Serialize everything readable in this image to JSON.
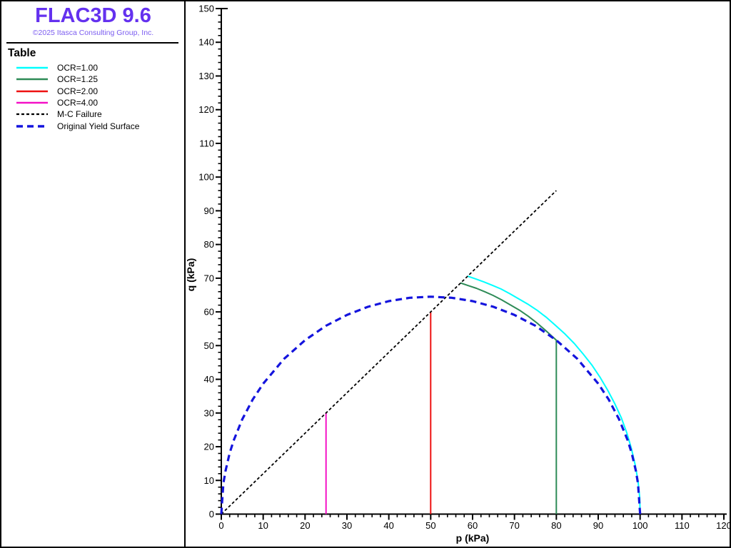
{
  "panel": {
    "title": "FLAC3D 9.6",
    "copyright": "©2025 Itasca Consulting Group, Inc.",
    "section_title": "Table",
    "brand_color": "#6431ef",
    "copyright_color": "#7b5cf0"
  },
  "chart_data": {
    "type": "line",
    "title": "",
    "xlabel": "p (kPa)",
    "ylabel": "q (kPa)",
    "xlim": [
      0,
      120
    ],
    "ylim": [
      0,
      150
    ],
    "x_tick_major": 10,
    "x_tick_minor": 2,
    "y_tick_major": 10,
    "y_tick_minor": 2,
    "x_tick_labels": [
      "0",
      "10",
      "20",
      "30",
      "40",
      "50",
      "60",
      "70",
      "80",
      "90",
      "100",
      "110",
      "120"
    ],
    "y_tick_labels": [
      "0",
      "10",
      "20",
      "30",
      "40",
      "50",
      "60",
      "70",
      "80",
      "90",
      "100",
      "110",
      "120",
      "130",
      "140",
      "150"
    ],
    "grid": false,
    "legend_position": "left panel",
    "axis_color": "#000000",
    "series": [
      {
        "name": "OCR=1.00",
        "color": "#00ffff",
        "style": "solid",
        "width": 2,
        "dash": [],
        "points": [
          [
            100,
            0
          ],
          [
            99.9,
            5.0
          ],
          [
            99.5,
            9.9
          ],
          [
            98.8,
            14.8
          ],
          [
            97.9,
            19.6
          ],
          [
            96.8,
            24.2
          ],
          [
            95.5,
            28.6
          ],
          [
            93.9,
            32.9
          ],
          [
            92.2,
            36.9
          ],
          [
            90.4,
            40.7
          ],
          [
            88.5,
            44.2
          ],
          [
            86.4,
            47.5
          ],
          [
            84.3,
            50.6
          ],
          [
            82.1,
            53.4
          ],
          [
            79.9,
            55.9
          ],
          [
            77.7,
            58.3
          ],
          [
            75.5,
            60.4
          ],
          [
            73.2,
            62.3
          ],
          [
            71.0,
            63.9
          ],
          [
            68.9,
            65.4
          ],
          [
            66.8,
            66.8
          ],
          [
            64.7,
            67.9
          ],
          [
            62.7,
            68.9
          ],
          [
            60.7,
            69.8
          ],
          [
            58.8,
            70.6
          ]
        ]
      },
      {
        "name": "OCR=1.25",
        "color": "#2e8b57",
        "style": "solid",
        "width": 2,
        "dash": [],
        "points": [
          [
            80,
            0
          ],
          [
            80,
            51.6
          ],
          [
            77.6,
            54.3
          ],
          [
            75.5,
            56.6
          ],
          [
            73.3,
            58.7
          ],
          [
            71.2,
            60.5
          ],
          [
            69.0,
            62.1
          ],
          [
            66.9,
            63.6
          ],
          [
            64.9,
            64.9
          ],
          [
            62.9,
            66.0
          ],
          [
            60.9,
            67.0
          ],
          [
            59.0,
            67.8
          ],
          [
            57.1,
            68.6
          ]
        ]
      },
      {
        "name": "OCR=2.00",
        "color": "#ee1111",
        "style": "solid",
        "width": 2,
        "dash": [],
        "points": [
          [
            50,
            0
          ],
          [
            50,
            60
          ]
        ]
      },
      {
        "name": "OCR=4.00",
        "color": "#f411c6",
        "style": "solid",
        "width": 2,
        "dash": [],
        "points": [
          [
            25,
            0
          ],
          [
            25,
            30
          ]
        ]
      },
      {
        "name": "M-C Failure",
        "color": "#000000",
        "style": "dashed",
        "width": 1.8,
        "dash": [
          4,
          3
        ],
        "points": [
          [
            0,
            0
          ],
          [
            80,
            96
          ]
        ]
      },
      {
        "name": "Original Yield Surface",
        "color": "#1414dd",
        "style": "dashed",
        "width": 3.2,
        "dash": [
          9,
          6
        ],
        "points": [
          [
            0,
            0
          ],
          [
            0.5,
            9.1
          ],
          [
            1,
            12.8
          ],
          [
            2,
            18.1
          ],
          [
            3,
            22.0
          ],
          [
            5,
            28.1
          ],
          [
            7.5,
            34.0
          ],
          [
            10,
            38.7
          ],
          [
            15,
            46.1
          ],
          [
            20,
            51.6
          ],
          [
            25,
            55.9
          ],
          [
            30,
            59.1
          ],
          [
            35,
            61.5
          ],
          [
            40,
            63.2
          ],
          [
            45,
            64.2
          ],
          [
            50,
            64.5
          ],
          [
            55,
            64.2
          ],
          [
            60,
            63.2
          ],
          [
            65,
            61.5
          ],
          [
            70,
            59.1
          ],
          [
            75,
            55.9
          ],
          [
            80,
            51.6
          ],
          [
            85,
            46.1
          ],
          [
            90,
            38.7
          ],
          [
            92.5,
            34.0
          ],
          [
            95,
            28.1
          ],
          [
            97,
            22.0
          ],
          [
            98,
            18.1
          ],
          [
            99,
            12.8
          ],
          [
            99.5,
            9.1
          ],
          [
            100,
            0
          ]
        ]
      }
    ]
  }
}
